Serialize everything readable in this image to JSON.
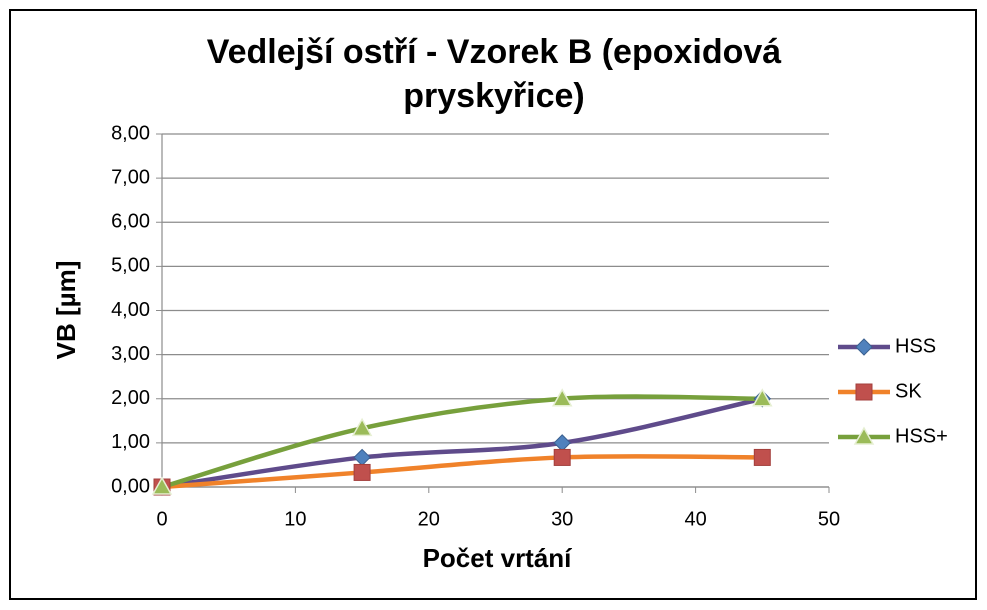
{
  "chart_data": {
    "type": "line",
    "title": "Vedlejší ostří - Vzorek B (epoxidová pryskyřice)",
    "xlabel": "Počet vrtání",
    "ylabel": "VB  [µm]",
    "x": [
      0,
      15,
      30,
      45
    ],
    "series": [
      {
        "name": "HSS",
        "color": "#5f4b8b",
        "marker": "diamond",
        "marker_color": "#4f81bd",
        "values": [
          0,
          0.67,
          1.0,
          2.0
        ]
      },
      {
        "name": "SK",
        "color": "#f0822a",
        "marker": "square",
        "marker_color": "#c0504d",
        "values": [
          0,
          0.33,
          0.67,
          0.67
        ]
      },
      {
        "name": "HSS+",
        "color": "#77a03c",
        "marker": "triangle",
        "marker_color": "#9bbb59",
        "values": [
          0,
          1.33,
          2.0,
          2.0
        ]
      }
    ],
    "xlim": [
      0,
      50
    ],
    "xticks": [
      0,
      10,
      20,
      30,
      40,
      50
    ],
    "ylim": [
      0,
      8
    ],
    "yticks": [
      {
        "value": 0,
        "label": "0,00"
      },
      {
        "value": 1,
        "label": "1,00"
      },
      {
        "value": 2,
        "label": "2,00"
      },
      {
        "value": 3,
        "label": "3,00"
      },
      {
        "value": 4,
        "label": "4,00"
      },
      {
        "value": 5,
        "label": "5,00"
      },
      {
        "value": 6,
        "label": "6,00"
      },
      {
        "value": 7,
        "label": "7,00"
      },
      {
        "value": 8,
        "label": "8,00"
      }
    ],
    "grid": true,
    "smooth": true,
    "legend": "right"
  }
}
